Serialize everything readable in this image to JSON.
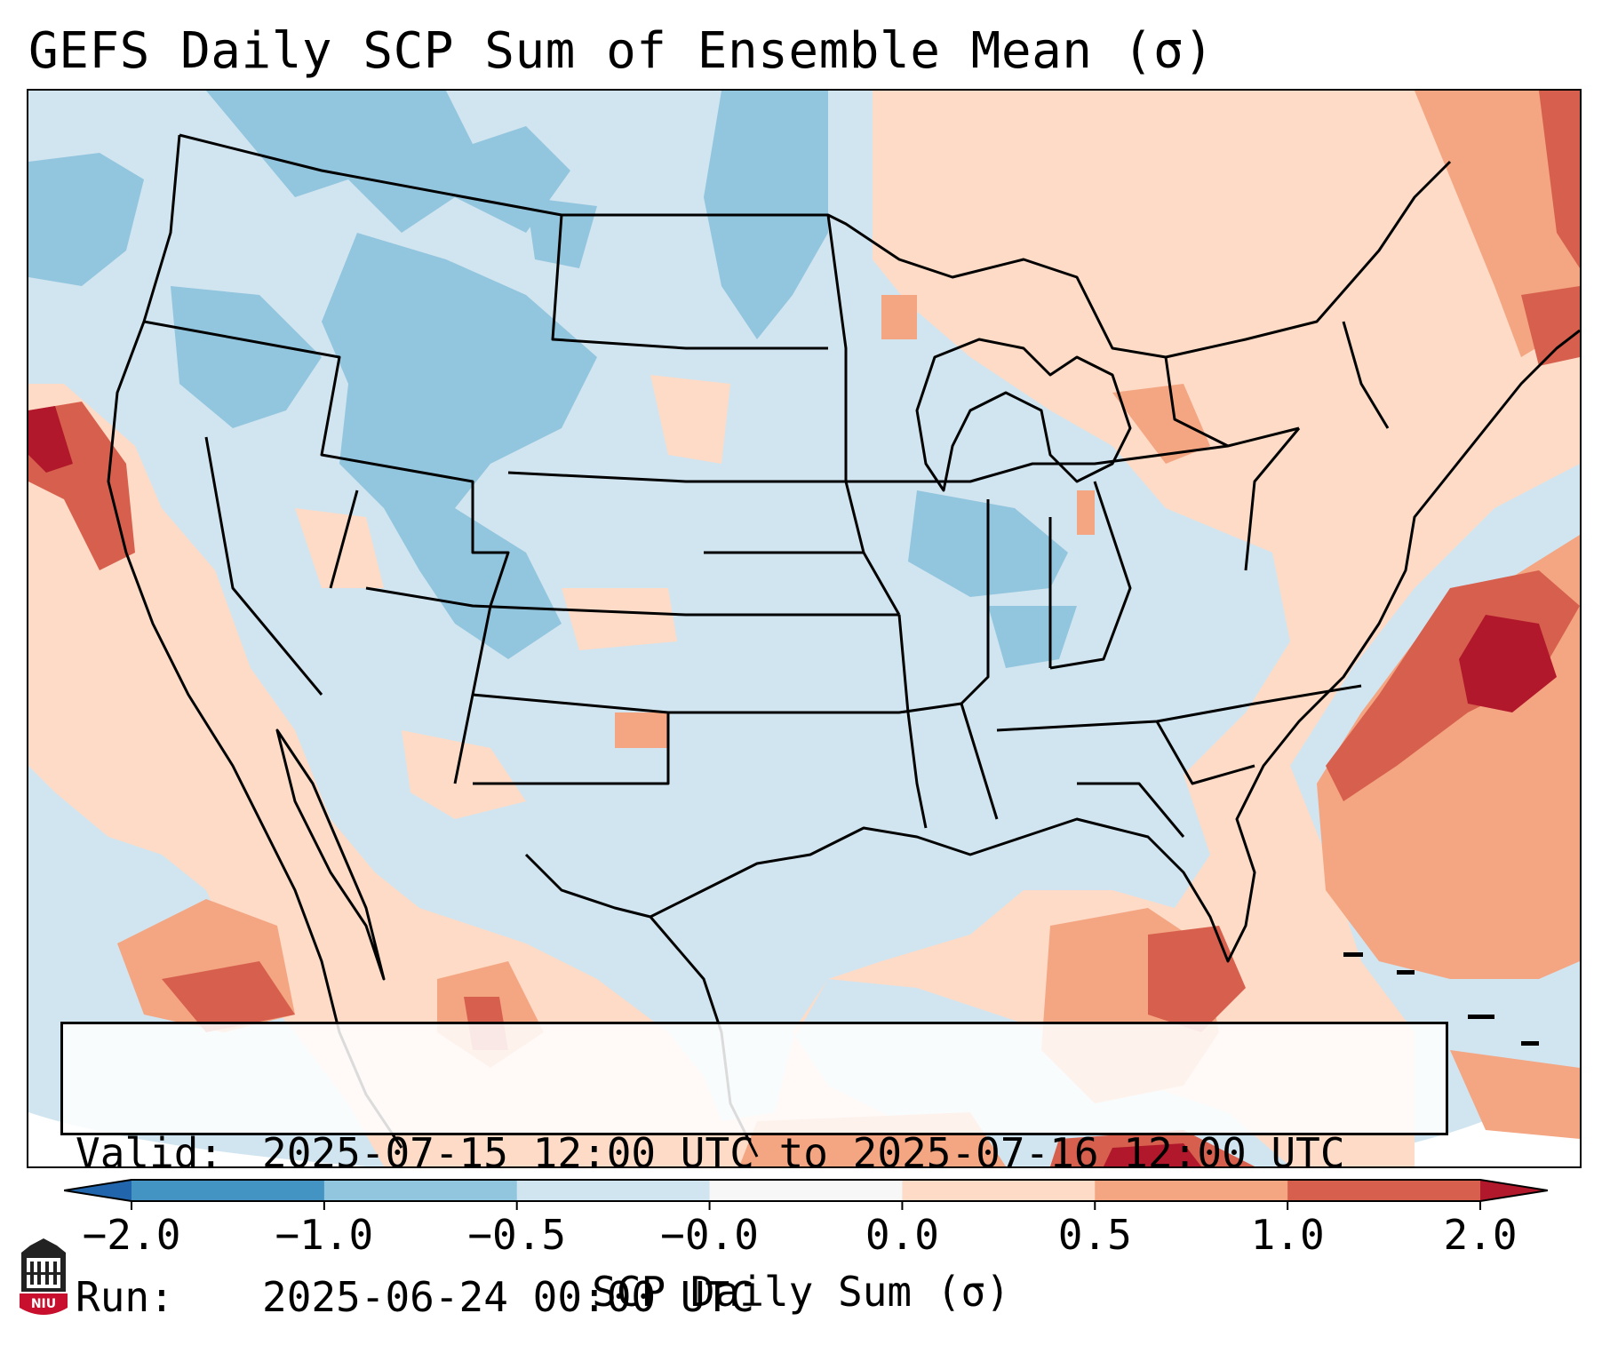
{
  "title": "GEFS Daily SCP Sum of Ensemble Mean (σ)",
  "map": {
    "region": "CONUS and surrounding ocean",
    "overlays": [
      "country borders",
      "US state borders",
      "coastlines",
      "Great Lakes"
    ],
    "hotspots": [
      {
        "region": "Northern California coast",
        "sigma": 1.0
      },
      {
        "region": "Atlantic off the Carolinas",
        "sigma": 2.0
      },
      {
        "region": "Gulf of Mexico south",
        "sigma": 2.0
      },
      {
        "region": "Baja / Gulf of California",
        "sigma": 1.0
      }
    ]
  },
  "info": {
    "valid_label": "Valid:",
    "valid_value": "2025-07-15 12:00 UTC to 2025-07-16 12:00 UTC",
    "run_label": "Run:",
    "run_value": "2025-06-24 00:00 UTC"
  },
  "colorbar": {
    "title": "SCP Daily Sum (σ)",
    "ticks": [
      "−2.0",
      "−1.0",
      "−0.5",
      "−0.0",
      "0.0",
      "0.5",
      "1.0",
      "2.0"
    ],
    "colors": {
      "below_min": "#2166ac",
      "n2_n1": "#4393c3",
      "n1_n05": "#92c5de",
      "n05_0": "#d1e5f0",
      "zero": "#f7f7f7",
      "p0_p05": "#fddbc7",
      "p05_p1": "#f4a582",
      "p1_p2": "#d6604d",
      "above_max": "#b2182b"
    }
  },
  "logo": {
    "text": "NIU"
  }
}
